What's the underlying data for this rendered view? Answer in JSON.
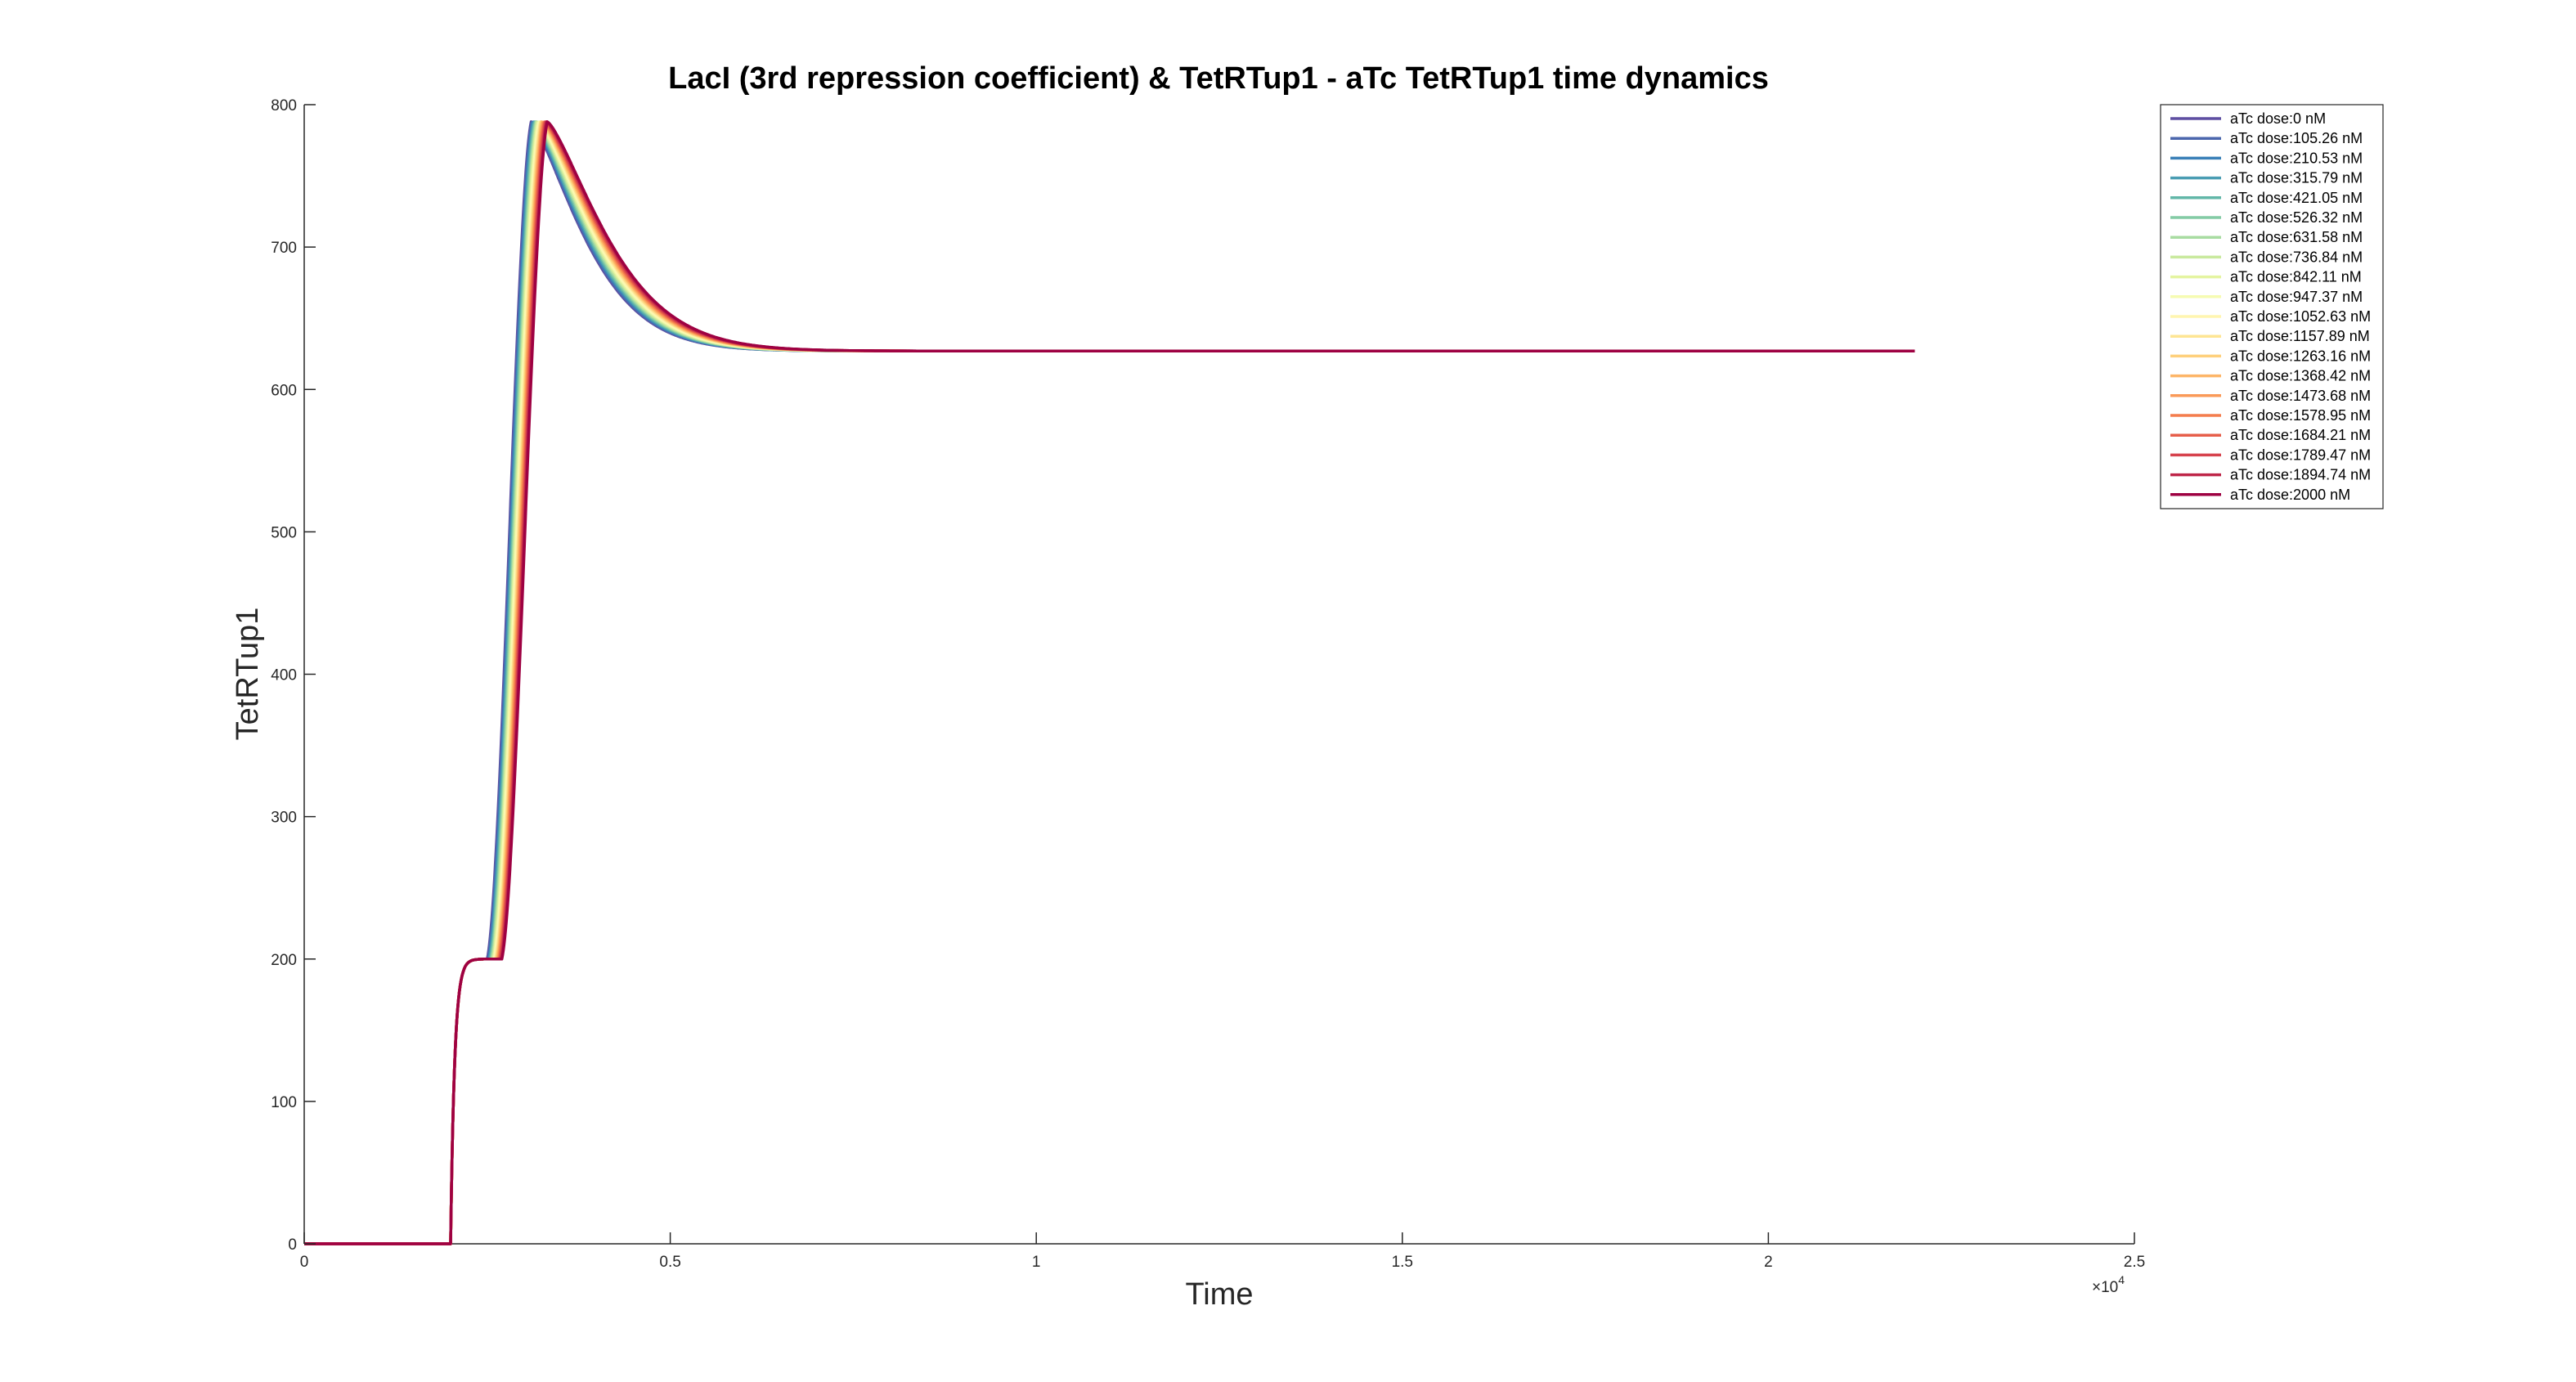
{
  "chart_data": {
    "type": "line",
    "title": "LacI (3rd repression coefficient) & TetRTup1 - aTc TetRTup1 time dynamics",
    "xlabel": "Time",
    "ylabel": "TetRTup1",
    "xlim": [
      0,
      25000
    ],
    "ylim": [
      0,
      800
    ],
    "x_ticks": [
      0,
      5000,
      10000,
      15000,
      20000,
      25000
    ],
    "x_tick_labels": [
      "0",
      "0.5",
      "1",
      "1.5",
      "2",
      "2.5"
    ],
    "y_ticks": [
      0,
      100,
      200,
      300,
      400,
      500,
      600,
      700,
      800
    ],
    "y_tick_labels": [
      "0",
      "100",
      "200",
      "300",
      "400",
      "500",
      "600",
      "700",
      "800"
    ],
    "x_exponent_label": "×10",
    "x_exponent_power": "4",
    "grid": false,
    "legend_position": "top-right",
    "x_end": 22000,
    "steady_state": 627,
    "plateau": 200,
    "first_rise_time": 2000,
    "peak_value": 788,
    "rise_time_first_dose": 2500,
    "rise_time_last_dose": 2700,
    "series": [
      {
        "name": "aTc dose:0 nM",
        "color": "#5e4fa2"
      },
      {
        "name": "aTc dose:105.26 nM",
        "color": "#4b67ad"
      },
      {
        "name": "aTc dose:210.53 nM",
        "color": "#3a80b8"
      },
      {
        "name": "aTc dose:315.79 nM",
        "color": "#4a9db3"
      },
      {
        "name": "aTc dose:421.05 nM",
        "color": "#62b7a8"
      },
      {
        "name": "aTc dose:526.32 nM",
        "color": "#84cba5"
      },
      {
        "name": "aTc dose:631.58 nM",
        "color": "#a8dca2"
      },
      {
        "name": "aTc dose:736.84 nM",
        "color": "#c9e99e"
      },
      {
        "name": "aTc dose:842.11 nM",
        "color": "#e4f4a0"
      },
      {
        "name": "aTc dose:947.37 nM",
        "color": "#f6fbb2"
      },
      {
        "name": "aTc dose:1052.63 nM",
        "color": "#fff5b0"
      },
      {
        "name": "aTc dose:1157.89 nM",
        "color": "#fee593"
      },
      {
        "name": "aTc dose:1263.16 nM",
        "color": "#fed07c"
      },
      {
        "name": "aTc dose:1368.42 nM",
        "color": "#fdb567"
      },
      {
        "name": "aTc dose:1473.68 nM",
        "color": "#fa9a58"
      },
      {
        "name": "aTc dose:1578.95 nM",
        "color": "#f47d4d"
      },
      {
        "name": "aTc dose:1684.21 nM",
        "color": "#e65e4a"
      },
      {
        "name": "aTc dose:1789.47 nM",
        "color": "#d6434d"
      },
      {
        "name": "aTc dose:1894.74 nM",
        "color": "#be2548"
      },
      {
        "name": "aTc dose:2000 nM",
        "color": "#9e0142"
      }
    ]
  }
}
